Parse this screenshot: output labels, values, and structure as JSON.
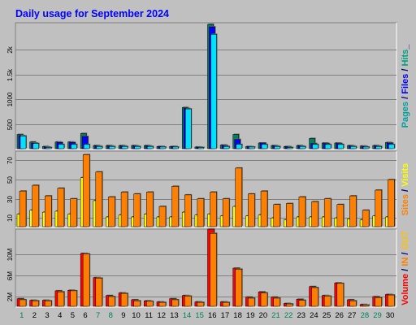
{
  "chart_data": {
    "type": "bar",
    "title": "Daily usage for September 2024",
    "x": [
      "1",
      "2",
      "3",
      "4",
      "5",
      "6",
      "7",
      "8",
      "9",
      "10",
      "11",
      "12",
      "13",
      "14",
      "15",
      "16",
      "17",
      "18",
      "19",
      "20",
      "21",
      "22",
      "23",
      "24",
      "25",
      "26",
      "27",
      "28",
      "29",
      "30"
    ],
    "weekend_days": [
      1,
      7,
      8,
      14,
      15,
      21,
      22,
      28,
      29
    ],
    "panels": [
      {
        "id": "hits",
        "right_label": [
          {
            "text": "Pages",
            "color": "#00A0A0"
          },
          {
            "text": " / ",
            "color": "#000080"
          },
          {
            "text": "Files",
            "color": "#0000FF"
          },
          {
            "text": " / ",
            "color": "#000080"
          },
          {
            "text": "Hits",
            "color": "#00A080"
          },
          {
            "text": "_",
            "color": "#000080"
          }
        ],
        "yticks": [
          {
            "value": 500,
            "label": "500"
          },
          {
            "value": 1000,
            "label": "1000"
          },
          {
            "value": 1500,
            "label": "1.5k"
          },
          {
            "value": 2000,
            "label": "2k"
          }
        ],
        "ymax": 2500,
        "series": [
          {
            "name": "Hits",
            "color": "#00805C",
            "values": [
              300,
              150,
              60,
              150,
              150,
              320,
              80,
              80,
              80,
              80,
              80,
              60,
              60,
              840,
              50,
              2500,
              90,
              300,
              60,
              130,
              80,
              60,
              80,
              220,
              130,
              130,
              80,
              70,
              80,
              140
            ]
          },
          {
            "name": "Files",
            "color": "#0000FF",
            "values": [
              280,
              130,
              50,
              140,
              140,
              260,
              70,
              70,
              70,
              70,
              70,
              60,
              60,
              820,
              45,
              2450,
              80,
              200,
              55,
              130,
              70,
              55,
              70,
              120,
              120,
              120,
              70,
              60,
              70,
              130
            ]
          },
          {
            "name": "Pages",
            "color": "#00E0FF",
            "values": [
              270,
              120,
              40,
              100,
              100,
              100,
              60,
              60,
              60,
              60,
              60,
              50,
              50,
              810,
              40,
              2300,
              60,
              100,
              50,
              100,
              60,
              40,
              60,
              100,
              100,
              100,
              60,
              50,
              60,
              100
            ]
          }
        ]
      },
      {
        "id": "visits",
        "right_label": [
          {
            "text": "Sites",
            "color": "#FF8000"
          },
          {
            "text": " / ",
            "color": "#000080"
          },
          {
            "text": "Visits",
            "color": "#FFFF00"
          }
        ],
        "yticks": [
          {
            "value": 10,
            "label": "10"
          },
          {
            "value": 30,
            "label": "30"
          },
          {
            "value": 50,
            "label": "50"
          },
          {
            "value": 70,
            "label": "70"
          }
        ],
        "ymax": 78,
        "series": [
          {
            "name": "Visits",
            "color": "#FFFF00",
            "values": [
              14,
              18,
              16,
              17,
              14,
              52,
              28,
              11,
              13,
              11,
              14,
              11,
              11,
              16,
              13,
              14,
              12,
              22,
              12,
              13,
              10,
              8,
              11,
              11,
              11,
              10,
              9,
              8,
              12,
              11
            ]
          },
          {
            "name": "Sites",
            "color": "#FF8000",
            "values": [
              38,
              44,
              33,
              41,
              30,
              76,
              58,
              32,
              37,
              35,
              37,
              22,
              43,
              34,
              30,
              37,
              30,
              62,
              35,
              38,
              24,
              25,
              32,
              27,
              30,
              24,
              33,
              18,
              39,
              50
            ]
          }
        ]
      },
      {
        "id": "volume",
        "right_label": [
          {
            "text": "Volume",
            "color": "#FF0000"
          },
          {
            "text": " / ",
            "color": "#000080"
          },
          {
            "text": "IN",
            "color": "#FF8000"
          },
          {
            "text": " / ",
            "color": "#000080"
          },
          {
            "text": "OUT",
            "color": "#FFC000"
          }
        ],
        "yticks": [
          {
            "value": 2,
            "label": "2M"
          },
          {
            "value": 6,
            "label": "6M"
          },
          {
            "value": 10,
            "label": "10M"
          }
        ],
        "ymax": 14.5,
        "series": [
          {
            "name": "Volume",
            "color": "#FF0000",
            "values": [
              1.6,
              1.3,
              1.3,
              3.1,
              3.2,
              10.2,
              5.6,
              2.2,
              2.7,
              1.4,
              1.2,
              1.0,
              1.6,
              2.2,
              1.0,
              14.8,
              1.0,
              7.4,
              1.9,
              2.9,
              1.9,
              0.7,
              1.5,
              3.9,
              2.2,
              4.6,
              1.4,
              0.5,
              2.0,
              2.4
            ]
          },
          {
            "name": "OUT",
            "color": "#FF8000",
            "values": [
              1.4,
              1.2,
              1.2,
              2.9,
              3.1,
              10.1,
              5.5,
              2.0,
              2.6,
              1.2,
              1.1,
              0.9,
              1.4,
              2.1,
              0.9,
              14.0,
              0.9,
              7.2,
              1.7,
              2.7,
              1.7,
              0.6,
              1.3,
              3.7,
              2.1,
              4.5,
              1.2,
              0.4,
              1.8,
              2.3
            ]
          }
        ]
      }
    ],
    "colors": {
      "background": "#C0C0C0",
      "title": "#0000FF",
      "grid": "#808080",
      "weekday_label": "#000000",
      "weekend_label": "#00805C"
    }
  }
}
